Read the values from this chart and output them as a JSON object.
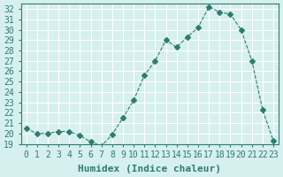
{
  "x": [
    0,
    1,
    2,
    3,
    4,
    5,
    6,
    7,
    8,
    9,
    10,
    11,
    12,
    13,
    14,
    15,
    16,
    17,
    18,
    19,
    20,
    21,
    22,
    23
  ],
  "y": [
    20.5,
    20.0,
    20.0,
    20.2,
    20.2,
    19.8,
    19.2,
    18.8,
    19.9,
    21.5,
    23.2,
    25.6,
    27.0,
    29.0,
    28.3,
    29.3,
    30.2,
    32.2,
    31.7,
    31.5,
    30.0,
    27.0,
    22.3,
    19.3
  ],
  "line_color": "#2e7d6e",
  "marker": "D",
  "marker_size": 3,
  "line_width": 0.8,
  "bg_color": "#d6efef",
  "grid_color": "#ffffff",
  "tick_color": "#2e7d6e",
  "xlabel": "Humidex (Indice chaleur)",
  "xlim": [
    -0.5,
    23.5
  ],
  "ylim": [
    19.0,
    32.5
  ],
  "yticks": [
    19,
    20,
    21,
    22,
    23,
    24,
    25,
    26,
    27,
    28,
    29,
    30,
    31,
    32
  ],
  "xticks": [
    0,
    1,
    2,
    3,
    4,
    5,
    6,
    7,
    8,
    9,
    10,
    11,
    12,
    13,
    14,
    15,
    16,
    17,
    18,
    19,
    20,
    21,
    22,
    23
  ],
  "font_color": "#2e7d6e",
  "font_size": 7,
  "xlabel_fontsize": 8
}
